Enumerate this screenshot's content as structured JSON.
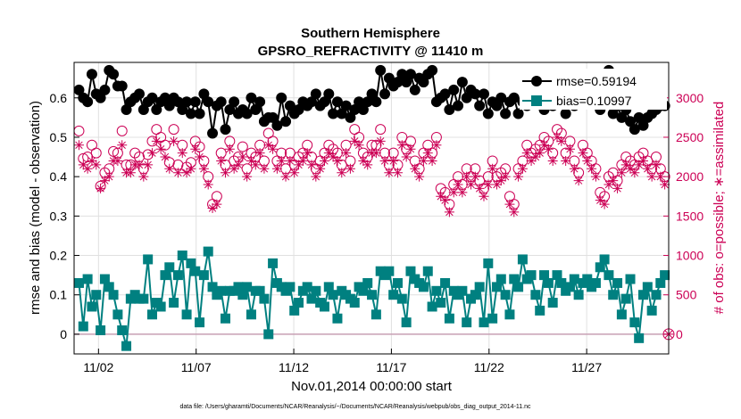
{
  "chart_data": {
    "type": "line",
    "title": "Southern Hemisphere",
    "subtitle": "GPSRO_REFRACTIVITY @ 11410 m",
    "xlabel": "Nov.01,2014 00:00:00 start",
    "ylabel": "rmse and bias (model - observation)",
    "ylabel_right": "# of obs: o=possible; ∗=assimilated",
    "footnote": "data file: /Users/gharamti/Documents/NCAR/Reanalysis/~/Documents/NCAR/Reanalysis/webpub/obs_diag_output_2014-11.nc",
    "x_tick_labels": [
      "11/02",
      "11/07",
      "11/12",
      "11/17",
      "11/22",
      "11/27"
    ],
    "x_tick_days": [
      2,
      7,
      12,
      17,
      22,
      27
    ],
    "xlim": [
      0.75,
      31.2
    ],
    "y_ticks": [
      "0",
      "0.1",
      "0.2",
      "0.3",
      "0.4",
      "0.5",
      "0.6"
    ],
    "ylim": [
      -0.05,
      0.69
    ],
    "y_right_ticks": [
      "0",
      "500",
      "1000",
      "1500",
      "2000",
      "2500",
      "3000"
    ],
    "ylim_right": [
      -250,
      3450
    ],
    "grid": true,
    "legend_position": "top-right",
    "colors": {
      "rmse": "#000000",
      "bias": "#008080",
      "obs": "#cc0055",
      "zero_line": "#c8a0b4",
      "grid": "#e0e0e0"
    },
    "series": [
      {
        "name": "rmse",
        "legend_label": "rmse=0.59194",
        "marker": "circle-filled",
        "color": "#000000",
        "values": [
          0.62,
          0.6,
          0.59,
          0.66,
          0.61,
          0.6,
          0.62,
          0.67,
          0.66,
          0.63,
          0.63,
          0.57,
          0.59,
          0.6,
          0.61,
          0.57,
          0.59,
          0.6,
          0.57,
          0.59,
          0.6,
          0.58,
          0.6,
          0.59,
          0.57,
          0.59,
          0.56,
          0.59,
          0.56,
          0.61,
          0.59,
          0.51,
          0.58,
          0.59,
          0.52,
          0.57,
          0.59,
          0.56,
          0.57,
          0.56,
          0.6,
          0.57,
          0.59,
          0.54,
          0.55,
          0.55,
          0.53,
          0.6,
          0.54,
          0.58,
          0.56,
          0.57,
          0.59,
          0.58,
          0.59,
          0.61,
          0.58,
          0.59,
          0.61,
          0.56,
          0.59,
          0.56,
          0.58,
          0.55,
          0.57,
          0.59,
          0.57,
          0.59,
          0.61,
          0.59,
          0.67,
          0.61,
          0.65,
          0.63,
          0.64,
          0.66,
          0.64,
          0.66,
          0.62,
          0.65,
          0.64,
          0.66,
          0.67,
          0.59,
          0.6,
          0.61,
          0.57,
          0.62,
          0.58,
          0.64,
          0.6,
          0.62,
          0.61,
          0.58,
          0.61,
          0.56,
          0.59,
          0.58,
          0.6,
          0.56,
          0.59,
          0.6,
          0.56,
          0.59,
          0.58,
          0.6,
          0.59,
          0.62,
          0.57,
          0.6,
          0.58,
          0.61,
          0.59,
          0.56,
          0.6,
          0.58,
          0.59,
          0.6,
          0.62,
          0.59,
          0.6,
          0.57,
          0.61,
          0.67,
          0.56,
          0.58,
          0.55,
          0.57,
          0.54,
          0.52,
          0.55,
          0.53,
          0.55,
          0.56,
          0.57,
          0.58,
          0.58
        ]
      },
      {
        "name": "bias",
        "legend_label": "bias=0.10997",
        "marker": "square-filled",
        "color": "#008080",
        "values": [
          0.13,
          0.02,
          0.14,
          0.07,
          0.1,
          0.01,
          0.14,
          0.12,
          0.1,
          0.05,
          0.01,
          -0.03,
          0.09,
          0.1,
          0.09,
          0.09,
          0.19,
          0.05,
          0.08,
          0.07,
          0.15,
          0.17,
          0.08,
          0.15,
          0.2,
          0.05,
          0.18,
          0.16,
          0.03,
          0.15,
          0.21,
          0.12,
          0.1,
          0.11,
          0.04,
          0.11,
          0.11,
          0.12,
          0.1,
          0.12,
          0.05,
          0.11,
          0.11,
          0.09,
          0.0,
          0.18,
          0.13,
          0.12,
          0.11,
          0.12,
          0.06,
          0.08,
          0.11,
          0.12,
          0.09,
          0.11,
          0.08,
          0.07,
          0.12,
          0.1,
          0.04,
          0.11,
          0.1,
          0.09,
          0.08,
          0.12,
          0.11,
          0.13,
          0.1,
          0.05,
          0.16,
          0.15,
          0.16,
          0.1,
          0.13,
          0.09,
          0.03,
          0.16,
          0.14,
          0.13,
          0.12,
          0.16,
          0.07,
          0.11,
          0.08,
          0.13,
          0.04,
          0.11,
          0.1,
          0.11,
          0.03,
          0.09,
          0.1,
          0.12,
          0.03,
          0.18,
          0.04,
          0.12,
          0.14,
          0.1,
          0.05,
          0.14,
          0.12,
          0.19,
          0.14,
          0.15,
          0.1,
          0.06,
          0.15,
          0.13,
          0.08,
          0.15,
          0.13,
          0.11,
          0.12,
          0.14,
          0.1,
          0.13,
          0.14,
          0.12,
          0.13,
          0.17,
          0.19,
          0.15,
          0.1,
          0.13,
          0.05,
          0.09,
          0.14,
          0.03,
          -0.01,
          0.1,
          0.12,
          0.06,
          0.1,
          0.13,
          0.15
        ]
      },
      {
        "name": "possible",
        "marker": "circle-open",
        "color": "#cc0055",
        "axis": "right",
        "values": [
          2580,
          2230,
          2250,
          2400,
          2300,
          1880,
          2050,
          2100,
          2320,
          2300,
          2580,
          2150,
          2150,
          2300,
          2250,
          2100,
          2280,
          2450,
          2600,
          2500,
          2400,
          2180,
          2600,
          2150,
          2400,
          2120,
          2180,
          2450,
          2380,
          2200,
          2000,
          1650,
          1750,
          2300,
          2150,
          2450,
          2200,
          2250,
          2380,
          2100,
          2300,
          2250,
          2400,
          2200,
          2550,
          2450,
          2200,
          2300,
          2100,
          2300,
          2150,
          2250,
          2300,
          2400,
          2250,
          2100,
          2200,
          2300,
          2400,
          2350,
          2300,
          2150,
          2400,
          2200,
          2600,
          2500,
          2300,
          2250,
          2400,
          2400,
          2600,
          2300,
          2150,
          2300,
          2150,
          2500,
          2350,
          2450,
          2200,
          2100,
          2300,
          2400,
          2300,
          2500,
          1850,
          1800,
          1650,
          1900,
          2000,
          1900,
          2100,
          2000,
          2100,
          1950,
          1850,
          2000,
          2200,
          2000,
          2050,
          2100,
          1750,
          1650,
          2100,
          2200,
          2400,
          2300,
          2350,
          2400,
          2500,
          2450,
          2300,
          2600,
          2550,
          2300,
          2450,
          2200,
          2050,
          2400,
          2300,
          2200,
          2100,
          1800,
          1750,
          2000,
          2050,
          1950,
          2150,
          2250,
          2200,
          2150,
          2250,
          2300,
          2200,
          2100,
          2250,
          2100,
          2000
        ]
      },
      {
        "name": "assimilated",
        "marker": "asterisk",
        "color": "#cc0055",
        "axis": "right",
        "values": [
          2400,
          2150,
          2100,
          2200,
          2150,
          1850,
          1950,
          2000,
          2200,
          2200,
          2400,
          2050,
          2050,
          2150,
          2150,
          2000,
          2150,
          2300,
          2450,
          2350,
          2250,
          2100,
          2450,
          2050,
          2300,
          2050,
          2100,
          2350,
          2250,
          2100,
          1900,
          1600,
          1650,
          2200,
          2050,
          2350,
          2100,
          2150,
          2250,
          2000,
          2200,
          2150,
          2300,
          2100,
          2400,
          2350,
          2100,
          2200,
          2000,
          2200,
          2050,
          2150,
          2200,
          2300,
          2150,
          2000,
          2100,
          2200,
          2300,
          2250,
          2200,
          2050,
          2300,
          2100,
          2450,
          2400,
          2200,
          2150,
          2300,
          2300,
          2450,
          2200,
          2050,
          2200,
          2050,
          2400,
          2250,
          2350,
          2100,
          2000,
          2200,
          2300,
          2200,
          2400,
          1750,
          1700,
          1550,
          1800,
          1900,
          1800,
          2000,
          1900,
          2000,
          1850,
          1750,
          1900,
          2100,
          1900,
          1950,
          2000,
          1650,
          1550,
          2000,
          2100,
          2300,
          2200,
          2250,
          2300,
          2400,
          2350,
          2200,
          2500,
          2450,
          2200,
          2350,
          2100,
          1950,
          2300,
          2200,
          2100,
          2000,
          1700,
          1650,
          1900,
          1950,
          1850,
          2050,
          2150,
          2100,
          2050,
          2150,
          2200,
          2100,
          2000,
          2150,
          2000,
          1900
        ]
      }
    ]
  }
}
